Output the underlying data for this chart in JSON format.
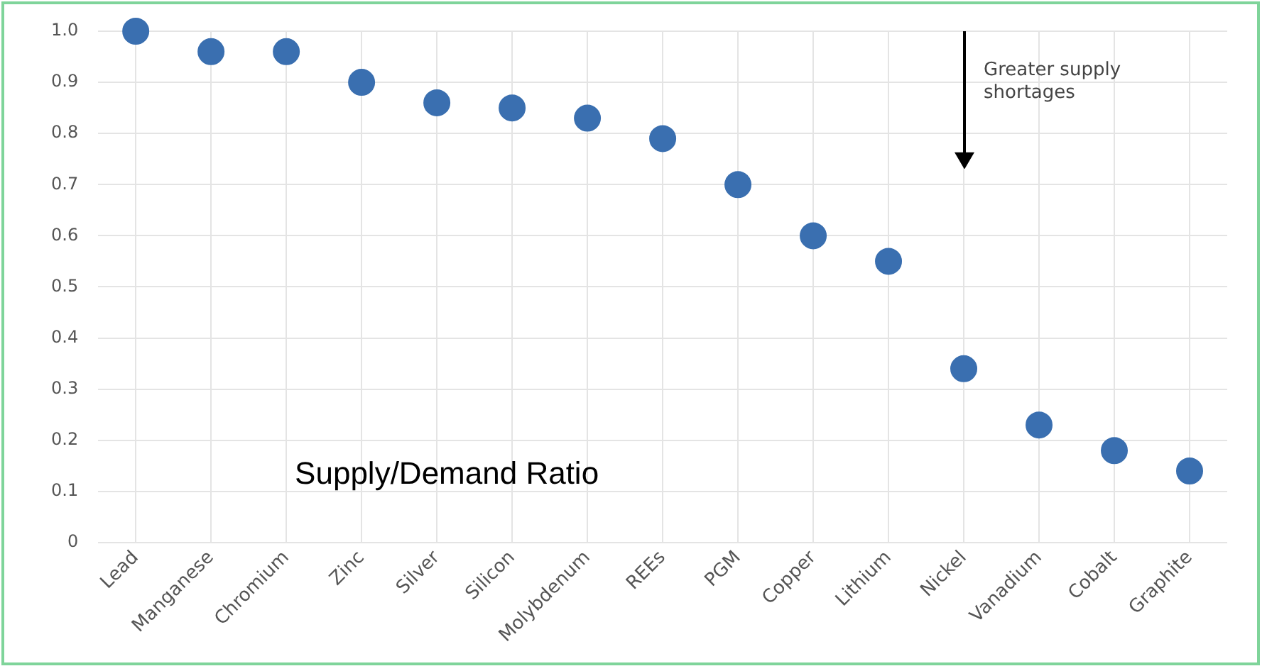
{
  "chart_data": {
    "type": "scatter",
    "categories": [
      "Lead",
      "Manganese",
      "Chromium",
      "Zinc",
      "Silver",
      "Silicon",
      "Molybdenum",
      "REEs",
      "PGM",
      "Copper",
      "Lithium",
      "Nickel",
      "Vanadium",
      "Cobalt",
      "Graphite"
    ],
    "values": [
      1.0,
      0.96,
      0.96,
      0.9,
      0.86,
      0.85,
      0.83,
      0.79,
      0.7,
      0.6,
      0.55,
      0.34,
      0.23,
      0.18,
      0.14
    ],
    "color": "#3a6fb0",
    "marker": "circle",
    "grid": true,
    "legend": false,
    "ylim": [
      0,
      1
    ],
    "yticks": [
      0,
      0.1,
      0.2,
      0.3,
      0.4,
      0.5,
      0.6,
      0.7,
      0.8,
      0.9,
      {
        "value": 1,
        "label": "1.0"
      }
    ],
    "annotations": [
      "Greater supply shortages",
      "Supply/Demand Ratio"
    ]
  }
}
